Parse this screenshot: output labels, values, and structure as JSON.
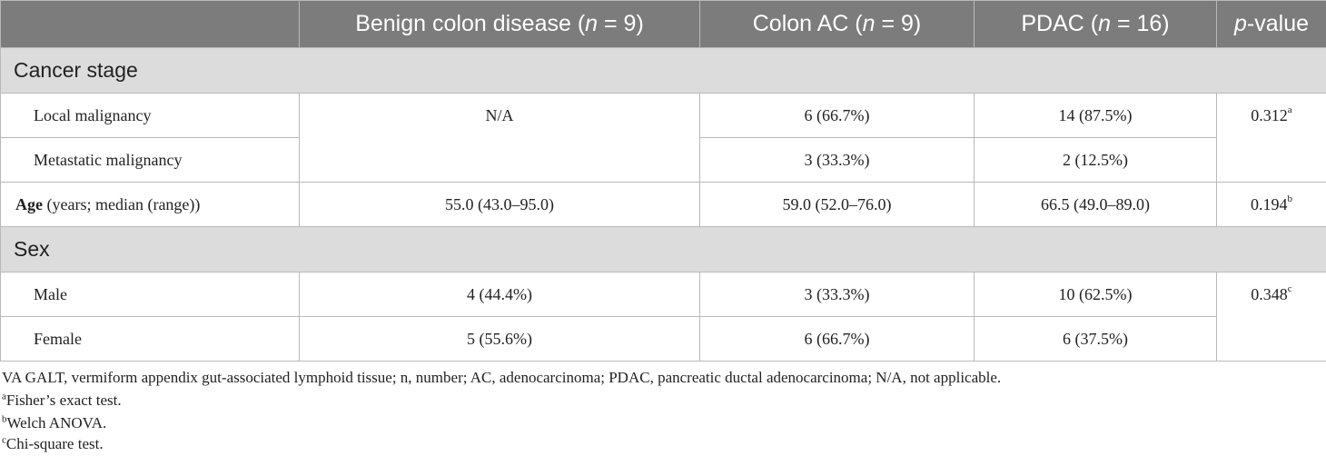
{
  "header": {
    "col0": "",
    "col1_pre": "Benign colon disease (",
    "col1_n": "n",
    "col1_post": " = 9)",
    "col2_pre": "Colon AC (",
    "col2_n": "n",
    "col2_post": " = 9)",
    "col3_pre": "PDAC (",
    "col3_n": "n",
    "col3_post": " = 16)",
    "col4_p": "p",
    "col4_post": "-value"
  },
  "sections": {
    "cancer_stage": "Cancer stage",
    "sex": "Sex"
  },
  "rows": {
    "local": {
      "label": "Local malignancy",
      "benign": "N/A",
      "colon": "6 (66.7%)",
      "pdac": "14 (87.5%)",
      "p": "0.312",
      "p_sup": "a"
    },
    "metastatic": {
      "label": "Metastatic malignancy",
      "colon": "3 (33.3%)",
      "pdac": "2 (12.5%)"
    },
    "age": {
      "label_bold": "Age",
      "label_rest": " (years; median (range))",
      "benign": "55.0 (43.0–95.0)",
      "colon": "59.0 (52.0–76.0)",
      "pdac": "66.5 (49.0–89.0)",
      "p": "0.194",
      "p_sup": "b"
    },
    "male": {
      "label": "Male",
      "benign": "4 (44.4%)",
      "colon": "3 (33.3%)",
      "pdac": "10 (62.5%)",
      "p": "0.348",
      "p_sup": "c"
    },
    "female": {
      "label": "Female",
      "benign": "5 (55.6%)",
      "colon": "6 (66.7%)",
      "pdac": "6 (37.5%)"
    }
  },
  "footnotes": {
    "abbrev": "VA GALT, vermiform appendix gut-associated lymphoid tissue; n, number; AC, adenocarcinoma; PDAC, pancreatic ductal adenocarcinoma; N/A, not applicable.",
    "a_mark": "a",
    "a_text": "Fisher’s exact test.",
    "b_mark": "b",
    "b_text": "Welch ANOVA.",
    "c_mark": "c",
    "c_text": "Chi-square test."
  }
}
